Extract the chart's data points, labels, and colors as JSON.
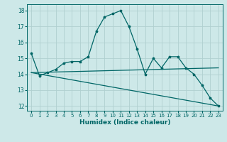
{
  "xlabel": "Humidex (Indice chaleur)",
  "background_color": "#cde8e8",
  "grid_color": "#b0d0d0",
  "line_color": "#006666",
  "xlim": [
    -0.5,
    23.5
  ],
  "ylim": [
    11.7,
    18.4
  ],
  "yticks": [
    12,
    13,
    14,
    15,
    16,
    17,
    18
  ],
  "xticks": [
    0,
    1,
    2,
    3,
    4,
    5,
    6,
    7,
    8,
    9,
    10,
    11,
    12,
    13,
    14,
    15,
    16,
    17,
    18,
    19,
    20,
    21,
    22,
    23
  ],
  "line1_x": [
    0,
    1,
    2,
    3,
    4,
    5,
    6,
    7,
    8,
    9,
    10,
    11,
    12,
    13,
    14,
    15,
    16,
    17,
    18,
    19,
    20,
    21,
    22,
    23
  ],
  "line1_y": [
    15.3,
    13.9,
    14.1,
    14.3,
    14.7,
    14.8,
    14.8,
    15.1,
    16.7,
    17.6,
    17.8,
    18.0,
    17.0,
    15.6,
    14.0,
    15.0,
    14.4,
    15.1,
    15.1,
    14.4,
    14.0,
    13.3,
    12.5,
    12.0
  ],
  "line2_x": [
    0,
    23
  ],
  "line2_y": [
    14.1,
    12.0
  ],
  "line3_x": [
    0,
    23
  ],
  "line3_y": [
    14.1,
    14.4
  ],
  "lw": 0.9,
  "ms": 2.5
}
